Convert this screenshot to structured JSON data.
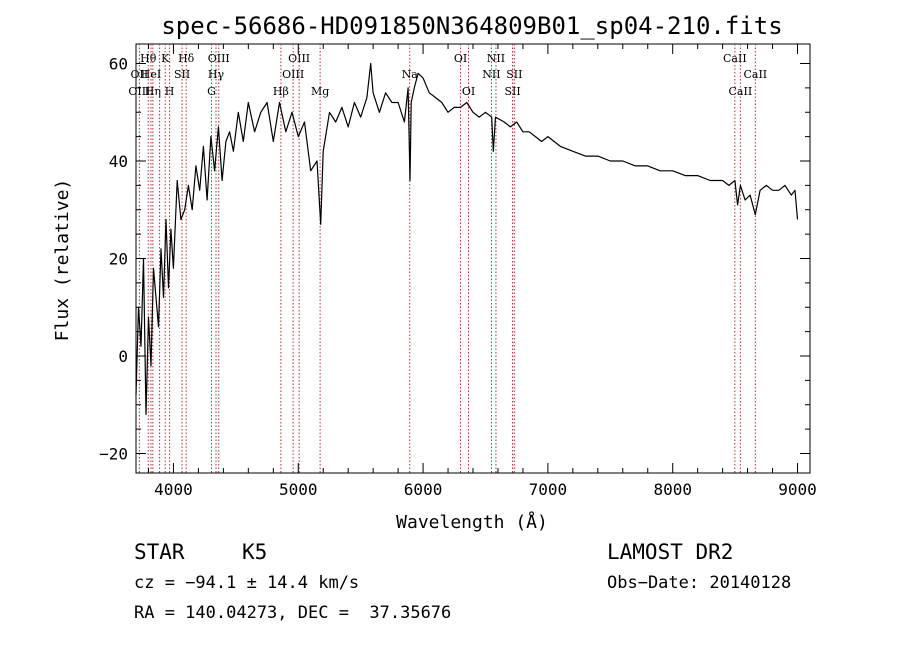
{
  "chart_data": {
    "type": "line",
    "title": "spec-56686-HD091850N364809B01_sp04-210.fits",
    "xlabel": "Wavelength (Å)",
    "ylabel": "Flux (relative)",
    "xlim": [
      3700,
      9100
    ],
    "ylim": [
      -24,
      64
    ],
    "xticks": [
      4000,
      5000,
      6000,
      7000,
      8000,
      9000
    ],
    "yticks": [
      -20,
      0,
      20,
      40,
      60
    ],
    "series": [
      {
        "name": "spectrum",
        "x": [
          3700,
          3720,
          3740,
          3760,
          3780,
          3800,
          3820,
          3840,
          3860,
          3880,
          3900,
          3920,
          3940,
          3960,
          3980,
          4000,
          4030,
          4060,
          4090,
          4120,
          4150,
          4180,
          4210,
          4240,
          4270,
          4300,
          4330,
          4360,
          4390,
          4420,
          4450,
          4480,
          4520,
          4560,
          4600,
          4650,
          4700,
          4750,
          4800,
          4850,
          4900,
          4950,
          5000,
          5050,
          5100,
          5150,
          5180,
          5200,
          5250,
          5300,
          5350,
          5400,
          5450,
          5500,
          5550,
          5580,
          5600,
          5650,
          5700,
          5750,
          5800,
          5850,
          5880,
          5895,
          5905,
          5930,
          5960,
          6000,
          6050,
          6100,
          6150,
          6200,
          6250,
          6300,
          6350,
          6400,
          6450,
          6500,
          6550,
          6563,
          6580,
          6650,
          6700,
          6750,
          6800,
          6850,
          6900,
          6950,
          7000,
          7100,
          7200,
          7300,
          7400,
          7500,
          7600,
          7700,
          7800,
          7900,
          8000,
          8100,
          8200,
          8300,
          8400,
          8450,
          8498,
          8520,
          8542,
          8580,
          8620,
          8662,
          8700,
          8750,
          8800,
          8850,
          8900,
          8950,
          8980,
          9000
        ],
        "values": [
          -8,
          10,
          2,
          20,
          -12,
          8,
          -2,
          18,
          12,
          6,
          22,
          12,
          28,
          14,
          26,
          18,
          36,
          28,
          30,
          35,
          30,
          39,
          34,
          43,
          32,
          45,
          38,
          47,
          36,
          44,
          46,
          42,
          50,
          44,
          52,
          46,
          50,
          52,
          44,
          52,
          46,
          50,
          45,
          48,
          38,
          40,
          27,
          42,
          50,
          48,
          51,
          47,
          52,
          49,
          53,
          60,
          54,
          50,
          54,
          52,
          52,
          48,
          55,
          36,
          52,
          55,
          58,
          57,
          54,
          53,
          52,
          50,
          51,
          51,
          52,
          50,
          49,
          50,
          49,
          42,
          49,
          48,
          47,
          48,
          46,
          46,
          45,
          44,
          45,
          43,
          42,
          41,
          41,
          40,
          40,
          39,
          39,
          38,
          38,
          37,
          37,
          36,
          36,
          35,
          36,
          31,
          35,
          32,
          33,
          29,
          34,
          35,
          34,
          34,
          35,
          33,
          34,
          28
        ]
      }
    ],
    "line_labels": [
      {
        "label": "OII",
        "x": 3727,
        "row": 2
      },
      {
        "label": "OIII",
        "x": 3727,
        "row": 3
      },
      {
        "label": "Hθ",
        "x": 3798,
        "row": 1
      },
      {
        "label": "HeI",
        "x": 3820,
        "row": 2
      },
      {
        "label": "Hη",
        "x": 3835,
        "row": 3
      },
      {
        "label": "K",
        "x": 3934,
        "row": 1
      },
      {
        "label": "SII",
        "x": 4069,
        "row": 2
      },
      {
        "label": "H",
        "x": 3969,
        "row": 3
      },
      {
        "label": "Hδ",
        "x": 4102,
        "row": 1
      },
      {
        "label": "OIII",
        "x": 4363,
        "row": 1
      },
      {
        "label": "Hγ",
        "x": 4341,
        "row": 2
      },
      {
        "label": "G",
        "x": 4305,
        "row": 3
      },
      {
        "label": "Hβ",
        "x": 4861,
        "row": 3
      },
      {
        "label": "OIII",
        "x": 5007,
        "row": 1
      },
      {
        "label": "OIII",
        "x": 4959,
        "row": 2
      },
      {
        "label": "Mg",
        "x": 5175,
        "row": 3
      },
      {
        "label": "Na",
        "x": 5893,
        "row": 2
      },
      {
        "label": "OI",
        "x": 6300,
        "row": 1
      },
      {
        "label": "OI",
        "x": 6364,
        "row": 3
      },
      {
        "label": "NII",
        "x": 6584,
        "row": 1
      },
      {
        "label": "NII",
        "x": 6548,
        "row": 2
      },
      {
        "label": "SII",
        "x": 6731,
        "row": 2
      },
      {
        "label": "SII",
        "x": 6717,
        "row": 3
      },
      {
        "label": "CaII",
        "x": 8498,
        "row": 1
      },
      {
        "label": "CaII",
        "x": 8662,
        "row": 2
      },
      {
        "label": "CaII",
        "x": 8542,
        "row": 3
      }
    ],
    "line_markers": [
      3727,
      3798,
      3820,
      3835,
      3889,
      3934,
      3969,
      4069,
      4102,
      4305,
      4341,
      4363,
      4861,
      4959,
      5007,
      5175,
      5893,
      6300,
      6364,
      6548,
      6584,
      6717,
      6731,
      8498,
      8542,
      8662
    ]
  },
  "info": {
    "object_class": "STAR",
    "subclass": "K5",
    "cz_line": "cz = −94.1 ± 14.4 km/s",
    "coords_line": "RA = 140.04273, DEC =  37.35676",
    "survey": "LAMOST DR2",
    "obs_date": "Obs−Date: 20140128"
  },
  "colors": {
    "marker_line": "#b0303a",
    "spectrum": "#000000",
    "axis": "#000000"
  }
}
